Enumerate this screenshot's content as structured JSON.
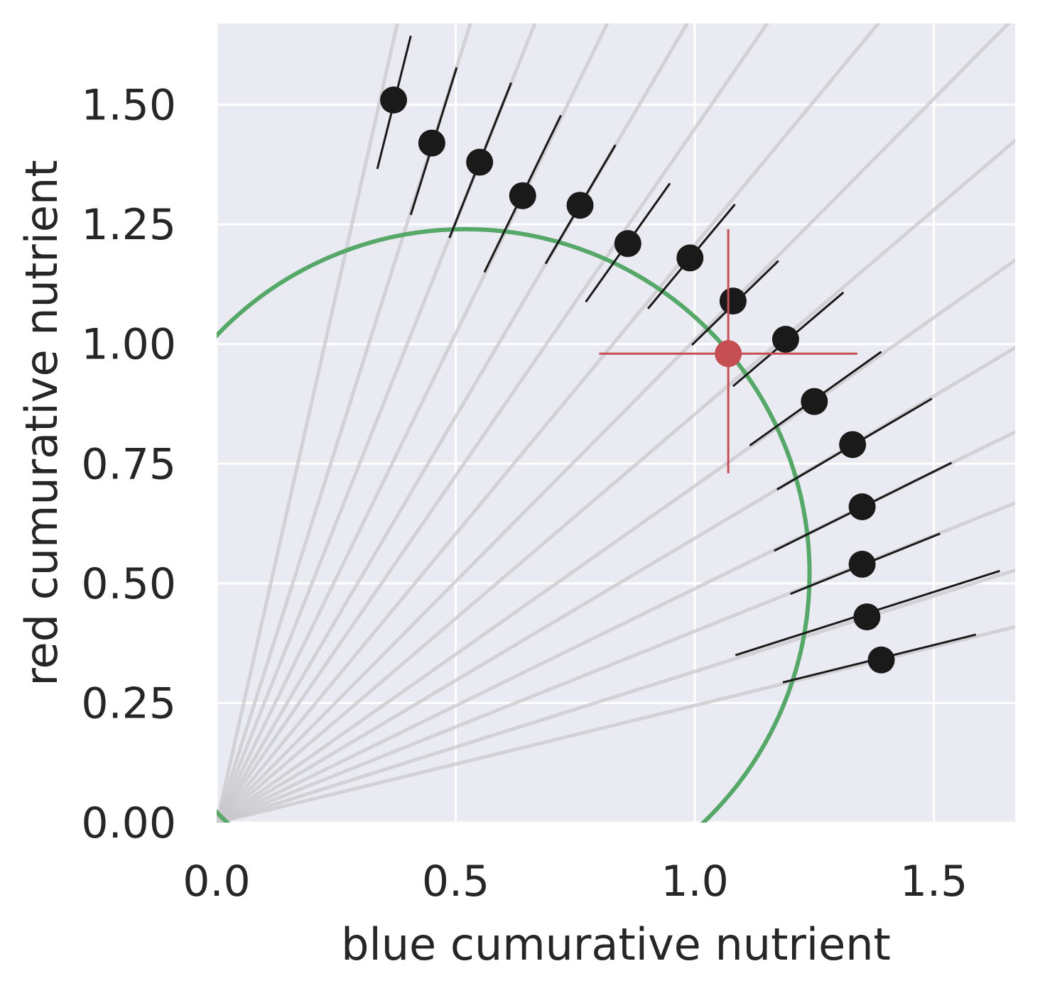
{
  "chart_data": {
    "type": "scatter",
    "xlabel": "blue cumurative nutrient",
    "ylabel": "red cumurative nutrient",
    "xlim": [
      0,
      1.67
    ],
    "ylim": [
      0,
      1.67
    ],
    "xticks": [
      "0.0",
      "0.5",
      "1.0",
      "1.5"
    ],
    "xtick_values": [
      0,
      0.5,
      1.0,
      1.5
    ],
    "yticks": [
      "0.00",
      "0.25",
      "0.50",
      "0.75",
      "1.00",
      "1.25",
      "1.50"
    ],
    "ytick_values": [
      0,
      0.25,
      0.5,
      0.75,
      1.0,
      1.25,
      1.5
    ],
    "grid": true,
    "background_color": "#eaeaf2",
    "grid_color": "#ffffff",
    "ray_color": "#c8c8cc",
    "point_color": "#1a1a1a",
    "errorbar_color": "#1a1a1a",
    "highlight_color": "#c44e52",
    "circle_color": "#55a868",
    "points": [
      {
        "x": 0.37,
        "y": 1.51,
        "lo": [
          0.336,
          1.366
        ],
        "hi": [
          0.406,
          1.644
        ]
      },
      {
        "x": 0.45,
        "y": 1.42,
        "lo": [
          0.406,
          1.27
        ],
        "hi": [
          0.502,
          1.578
        ]
      },
      {
        "x": 0.55,
        "y": 1.38,
        "lo": [
          0.487,
          1.222
        ],
        "hi": [
          0.616,
          1.546
        ]
      },
      {
        "x": 0.64,
        "y": 1.31,
        "lo": [
          0.56,
          1.15
        ],
        "hi": [
          0.72,
          1.478
        ]
      },
      {
        "x": 0.76,
        "y": 1.29,
        "lo": [
          0.688,
          1.168
        ],
        "hi": [
          0.834,
          1.416
        ]
      },
      {
        "x": 0.86,
        "y": 1.21,
        "lo": [
          0.772,
          1.088
        ],
        "hi": [
          0.948,
          1.336
        ]
      },
      {
        "x": 0.99,
        "y": 1.18,
        "lo": [
          0.902,
          1.074
        ],
        "hi": [
          1.084,
          1.292
        ]
      },
      {
        "x": 1.08,
        "y": 1.09,
        "lo": [
          0.994,
          0.998
        ],
        "hi": [
          1.175,
          1.174
        ]
      },
      {
        "x": 1.19,
        "y": 1.01,
        "lo": [
          1.08,
          0.912
        ],
        "hi": [
          1.311,
          1.108
        ]
      },
      {
        "x": 1.25,
        "y": 0.88,
        "lo": [
          1.115,
          0.788
        ],
        "hi": [
          1.39,
          0.984
        ]
      },
      {
        "x": 1.33,
        "y": 0.79,
        "lo": [
          1.172,
          0.696
        ],
        "hi": [
          1.496,
          0.886
        ]
      },
      {
        "x": 1.35,
        "y": 0.66,
        "lo": [
          1.166,
          0.568
        ],
        "hi": [
          1.537,
          0.752
        ]
      },
      {
        "x": 1.35,
        "y": 0.54,
        "lo": [
          1.2,
          0.478
        ],
        "hi": [
          1.513,
          0.604
        ]
      },
      {
        "x": 1.36,
        "y": 0.43,
        "lo": [
          1.085,
          0.35
        ],
        "hi": [
          1.638,
          0.526
        ]
      },
      {
        "x": 1.39,
        "y": 0.34,
        "lo": [
          1.184,
          0.293
        ],
        "hi": [
          1.588,
          0.393
        ]
      }
    ],
    "highlight_point": {
      "x": 1.07,
      "y": 0.98,
      "xerr": [
        0.8,
        1.34
      ],
      "yerr": [
        0.73,
        1.24
      ]
    },
    "circle": {
      "center": [
        0.52,
        0.52
      ],
      "radius": 0.72
    },
    "ray_angles_deg": [
      77.25,
      72.36,
      68.27,
      63.93,
      59.49,
      55.41,
      50.35,
      45.24,
      40.48,
      35.13,
      30.72,
      26.05,
      21.8,
      17.53,
      13.76
    ]
  }
}
